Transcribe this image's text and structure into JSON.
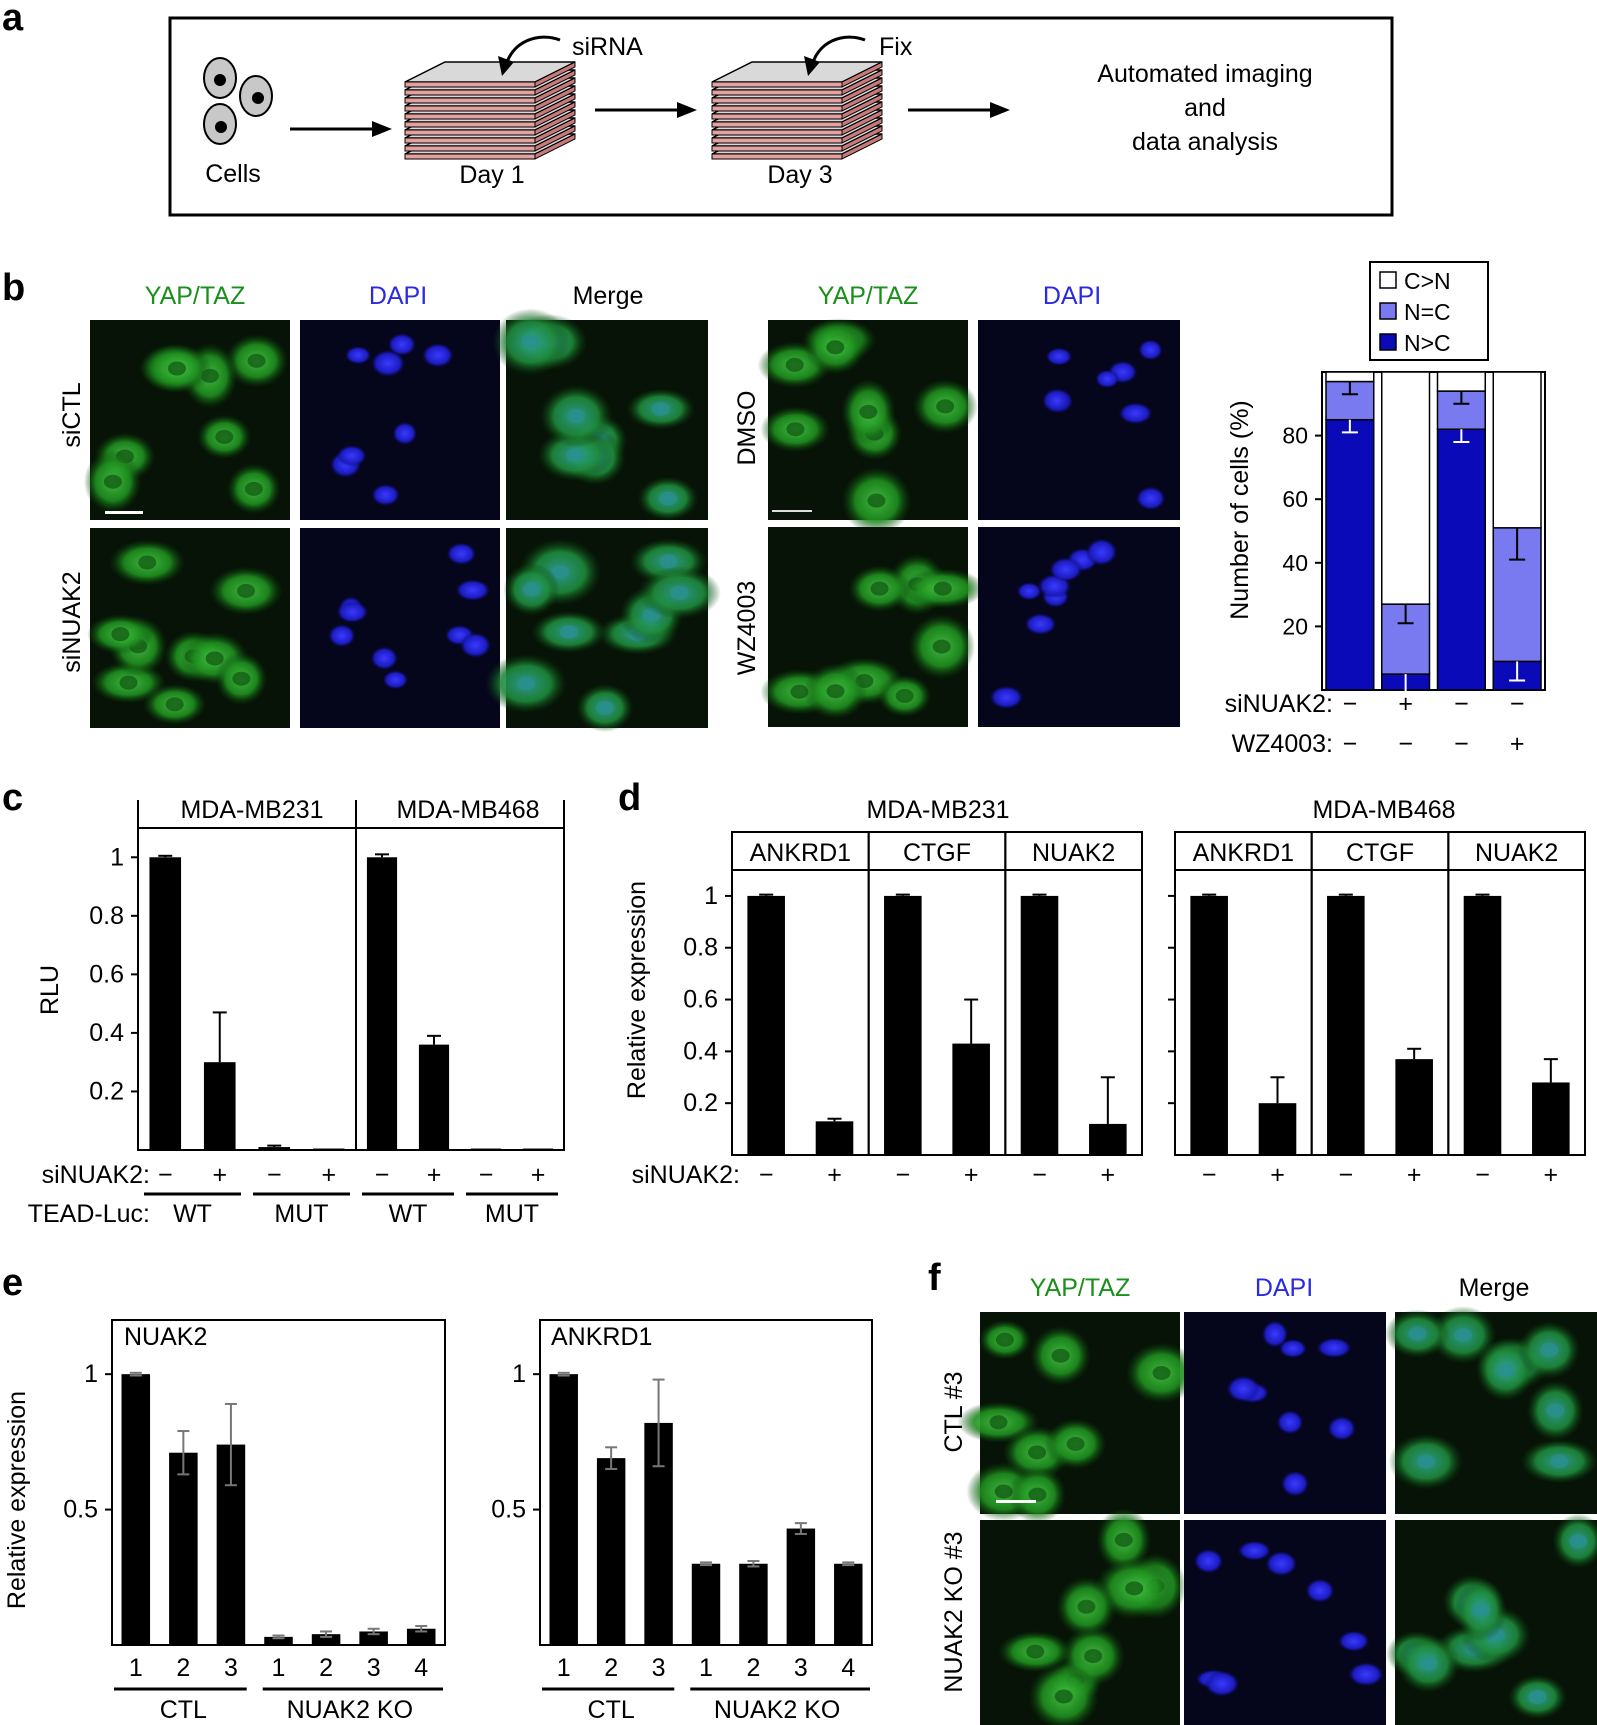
{
  "panels": {
    "a": "a",
    "b": "b",
    "c": "c",
    "d": "d",
    "e": "e",
    "f": "f"
  },
  "colors": {
    "yap": "#1a8f1a",
    "dapi": "#2a2ae6",
    "bar": "#000000",
    "nuc_dark": "#0a0ab8",
    "nuc_mid": "#7a7af0"
  },
  "a": {
    "cells_label": "Cells",
    "sirna_label": "siRNA",
    "fix_label": "Fix",
    "day1_label": "Day 1",
    "day3_label": "Day 3",
    "imaging_lines": [
      "Automated imaging",
      "and",
      "data analysis"
    ]
  },
  "b": {
    "col_left": [
      "YAP/TAZ",
      "DAPI",
      "Merge"
    ],
    "row_left": [
      "siCTL",
      "siNUAK2"
    ],
    "col_right": [
      "YAP/TAZ",
      "DAPI"
    ],
    "row_right": [
      "DMSO",
      "WZ4003"
    ]
  },
  "f": {
    "cols": [
      "YAP/TAZ",
      "DAPI",
      "Merge"
    ],
    "rows": [
      "CTL #3",
      "NUAK2 KO #3"
    ]
  },
  "chart_data": [
    {
      "panel": "b",
      "type": "bar",
      "stacked": true,
      "ylabel": "Number of cells (%)",
      "ylim": [
        0,
        100
      ],
      "yticks": [
        20,
        40,
        60,
        80
      ],
      "legend": [
        "C>N",
        "N=C",
        "N>C"
      ],
      "legend_position": "top",
      "series": [
        {
          "name": "N>C",
          "values": [
            85,
            5,
            82,
            9
          ]
        },
        {
          "name": "N=C",
          "values": [
            12,
            22,
            12,
            42
          ]
        },
        {
          "name": "C>N",
          "values": [
            3,
            73,
            6,
            49
          ]
        }
      ],
      "err_top": [
        4,
        6,
        4,
        10
      ],
      "err_nc": [
        4,
        6,
        4,
        6
      ],
      "row_labels": [
        "siNUAK2:",
        "WZ4003:"
      ],
      "rows": [
        [
          "−",
          "+",
          "−",
          "−"
        ],
        [
          "−",
          "−",
          "−",
          "+"
        ]
      ]
    },
    {
      "panel": "c",
      "type": "bar",
      "ylabel": "RLU",
      "ylim": [
        0,
        1.1
      ],
      "ytick_labels": [
        "0.2",
        "0.4",
        "0.6",
        "0.8",
        "1"
      ],
      "yticks": [
        0.2,
        0.4,
        0.6,
        0.8,
        1
      ],
      "groups": [
        "MDA-MB231",
        "MDA-MB468"
      ],
      "values": [
        1.0,
        0.3,
        0.01,
        0.005,
        1.0,
        0.36,
        0.005,
        0.005
      ],
      "errors": [
        0.005,
        0.17,
        0.005,
        0.003,
        0.01,
        0.03,
        0.002,
        0.002
      ],
      "row_label": "siNUAK2:",
      "signs": [
        "−",
        "+",
        "−",
        "+",
        "−",
        "+",
        "−",
        "+"
      ],
      "sub_label": "TEAD-Luc:",
      "sub_groups": [
        "WT",
        "MUT",
        "WT",
        "MUT"
      ]
    },
    {
      "panel": "d",
      "type": "bar",
      "ylabel": "Relative expression",
      "ylim": [
        0,
        1.1
      ],
      "ytick_labels": [
        "0.2",
        "0.4",
        "0.6",
        "0.8",
        "1"
      ],
      "yticks": [
        0.2,
        0.4,
        0.6,
        0.8,
        1
      ],
      "groups": [
        "MDA-MB231",
        "MDA-MB468"
      ],
      "genes": [
        "ANKRD1",
        "CTGF",
        "NUAK2"
      ],
      "values": [
        [
          1.0,
          0.13,
          1.0,
          0.43,
          1.0,
          0.12
        ],
        [
          1.0,
          0.2,
          1.0,
          0.37,
          1.0,
          0.28
        ]
      ],
      "errors": [
        [
          0.005,
          0.01,
          0.005,
          0.17,
          0.005,
          0.18
        ],
        [
          0.005,
          0.1,
          0.005,
          0.04,
          0.005,
          0.09
        ]
      ],
      "row_label": "siNUAK2:",
      "signs": [
        "−",
        "+",
        "−",
        "+",
        "−",
        "+"
      ]
    },
    {
      "panel": "e",
      "type": "bar",
      "ylabel": "Relative expression",
      "ylim": [
        0,
        1.2
      ],
      "ytick_labels": [
        "0.5",
        "1"
      ],
      "yticks": [
        0.5,
        1
      ],
      "charts": [
        {
          "title": "NUAK2",
          "values": [
            1.0,
            0.71,
            0.74,
            0.03,
            0.04,
            0.05,
            0.06
          ],
          "errors": [
            0.005,
            0.08,
            0.15,
            0.005,
            0.01,
            0.01,
            0.01
          ]
        },
        {
          "title": "ANKRD1",
          "values": [
            1.0,
            0.69,
            0.82,
            0.3,
            0.3,
            0.43,
            0.3
          ],
          "errors": [
            0.005,
            0.04,
            0.16,
            0.005,
            0.01,
            0.02,
            0.005
          ]
        }
      ],
      "x_labels": [
        "1",
        "2",
        "3",
        "1",
        "2",
        "3",
        "4"
      ],
      "group_labels": [
        "CTL",
        "NUAK2 KO"
      ]
    }
  ]
}
